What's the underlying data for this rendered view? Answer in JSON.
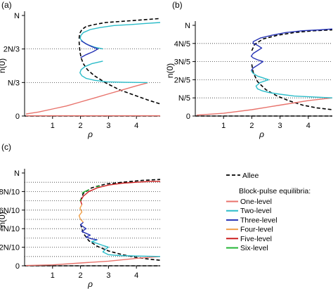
{
  "figure": {
    "ylabel": "n(0)",
    "xlabel": "ρ"
  },
  "legend": {
    "allee_label": "Allee",
    "header": "Block-pulse equilibria:",
    "items": [
      {
        "label": "One-level",
        "color": "#e8736c"
      },
      {
        "label": "Two-level",
        "color": "#2bbcc9"
      },
      {
        "label": "Three-level",
        "color": "#2633b5"
      },
      {
        "label": "Four-level",
        "color": "#f0a04a"
      },
      {
        "label": "Five-level",
        "color": "#cc1f1f"
      },
      {
        "label": "Six-level",
        "color": "#23b536"
      }
    ]
  },
  "chart_data": [
    {
      "panel": "(a)",
      "type": "line",
      "xlim": [
        0,
        4.85
      ],
      "ylim": [
        0,
        1
      ],
      "x_ticks": [
        1,
        2,
        3,
        4
      ],
      "x_tick_labels": [
        "1",
        "2",
        "3",
        "4"
      ],
      "y_ticks": [
        0,
        0.3333,
        0.6667,
        1
      ],
      "y_tick_labels": [
        "0",
        "N/3",
        "2N/3",
        "N"
      ],
      "dotted_hlines": [
        0.3333,
        0.6667
      ],
      "series": [
        {
          "name": "Allee",
          "style": "dashed",
          "color": "#000000",
          "x": [
            1.95,
            1.96,
            1.98,
            2.02,
            2.1,
            2.25,
            2.5,
            2.9,
            3.4,
            3.9,
            4.4,
            4.85
          ],
          "y": [
            0.74,
            0.7,
            0.64,
            0.58,
            0.52,
            0.46,
            0.4,
            0.33,
            0.26,
            0.21,
            0.16,
            0.12
          ]
        },
        {
          "name": "Allee",
          "style": "dashed",
          "color": "#000000",
          "x": [
            1.95,
            1.97,
            2.05,
            2.2,
            2.5,
            2.9,
            3.4,
            3.9,
            4.4,
            4.85
          ],
          "y": [
            0.77,
            0.82,
            0.86,
            0.89,
            0.91,
            0.93,
            0.94,
            0.95,
            0.96,
            0.97
          ]
        },
        {
          "name": "Allee",
          "style": "dashed",
          "color": "#000000",
          "x": [
            0,
            4.85
          ],
          "y": [
            0,
            0
          ]
        },
        {
          "name": "One-level",
          "color": "#e8736c",
          "x": [
            0.05,
            0.5,
            1.0,
            1.5,
            2.0,
            2.5,
            3.0,
            3.5,
            4.0,
            4.4
          ],
          "y": [
            0.02,
            0.04,
            0.07,
            0.1,
            0.14,
            0.18,
            0.22,
            0.26,
            0.3,
            0.33
          ]
        },
        {
          "name": "One-level",
          "color": "#e8736c",
          "x": [
            0.05,
            4.85
          ],
          "y": [
            0.003,
            0.003
          ]
        },
        {
          "name": "Two-level",
          "color": "#2bbcc9",
          "x": [
            4.4,
            3.6,
            2.95,
            2.5,
            2.2,
            2.05,
            1.98,
            2.02,
            2.15,
            2.4,
            2.8
          ],
          "y": [
            0.333,
            0.335,
            0.34,
            0.355,
            0.375,
            0.4,
            0.43,
            0.46,
            0.49,
            0.52,
            0.546
          ]
        },
        {
          "name": "Two-level",
          "color": "#2bbcc9",
          "x": [
            2.8,
            2.5,
            2.25,
            2.08,
            1.99,
            2.01,
            2.1,
            2.35,
            2.7,
            3.2,
            3.8,
            4.3,
            4.85
          ],
          "y": [
            0.667,
            0.685,
            0.71,
            0.74,
            0.77,
            0.8,
            0.83,
            0.86,
            0.88,
            0.9,
            0.91,
            0.92,
            0.93
          ]
        },
        {
          "name": "Three-level",
          "color": "#2633b5",
          "x": [
            2.0,
            2.2,
            2.45,
            2.62,
            2.4,
            2.18,
            2.02
          ],
          "y": [
            0.58,
            0.61,
            0.64,
            0.667,
            0.69,
            0.72,
            0.75
          ]
        }
      ]
    },
    {
      "panel": "(b)",
      "type": "line",
      "xlim": [
        0,
        4.85
      ],
      "ylim": [
        0,
        1
      ],
      "x_ticks": [
        1,
        2,
        3,
        4
      ],
      "x_tick_labels": [
        "1",
        "2",
        "3",
        "4"
      ],
      "y_ticks": [
        0,
        0.2,
        0.4,
        0.6,
        0.8,
        1
      ],
      "y_tick_labels": [
        "0",
        "N/5",
        "2N/5",
        "3N/5",
        "4N/5",
        "N"
      ],
      "dotted_hlines": [
        0.2,
        0.4,
        0.6,
        0.8
      ],
      "series": [
        {
          "name": "Allee",
          "style": "dashed",
          "color": "#000000",
          "x": [
            2.0,
            2.05,
            2.2,
            2.5,
            2.9,
            3.3,
            3.8,
            4.3,
            4.85
          ],
          "y": [
            0.57,
            0.48,
            0.38,
            0.29,
            0.22,
            0.17,
            0.12,
            0.09,
            0.07
          ]
        },
        {
          "name": "Allee",
          "style": "dashed",
          "color": "#000000",
          "x": [
            2.0,
            2.1,
            2.4,
            2.9,
            3.5,
            4.2,
            4.85
          ],
          "y": [
            0.72,
            0.79,
            0.85,
            0.89,
            0.92,
            0.94,
            0.95
          ]
        },
        {
          "name": "Allee",
          "style": "dashed",
          "color": "#000000",
          "x": [
            0,
            4.85
          ],
          "y": [
            0,
            0
          ]
        },
        {
          "name": "One-level",
          "color": "#e8736c",
          "x": [
            0.05,
            1.0,
            2.0,
            3.0,
            4.0,
            4.85
          ],
          "y": [
            0.01,
            0.03,
            0.07,
            0.12,
            0.17,
            0.2
          ]
        },
        {
          "name": "Two-level",
          "color": "#2bbcc9",
          "x": [
            4.85,
            4.2,
            3.5,
            3.0,
            2.6,
            2.35,
            2.2,
            2.15,
            2.3,
            2.6
          ],
          "y": [
            0.2,
            0.21,
            0.22,
            0.24,
            0.26,
            0.28,
            0.3,
            0.33,
            0.37,
            0.4
          ]
        },
        {
          "name": "Two-level",
          "color": "#2bbcc9",
          "x": [
            2.6,
            2.4,
            2.2,
            2.05,
            1.98
          ],
          "y": [
            0.4,
            0.42,
            0.44,
            0.47,
            0.5
          ]
        },
        {
          "name": "Three-level",
          "color": "#2633b5",
          "x": [
            1.98,
            2.05,
            2.2,
            2.4,
            2.2,
            2.05,
            1.98,
            2.05,
            2.2,
            2.35,
            2.2,
            2.05,
            2.05,
            2.3,
            2.7,
            3.2,
            3.8,
            4.4,
            4.85
          ],
          "y": [
            0.5,
            0.53,
            0.56,
            0.6,
            0.62,
            0.64,
            0.66,
            0.69,
            0.72,
            0.75,
            0.78,
            0.8,
            0.82,
            0.86,
            0.89,
            0.92,
            0.94,
            0.95,
            0.96
          ]
        }
      ]
    },
    {
      "panel": "(c)",
      "type": "line",
      "xlim": [
        0,
        4.85
      ],
      "ylim": [
        0,
        1
      ],
      "x_ticks": [
        1,
        2,
        3,
        4
      ],
      "x_tick_labels": [
        "1",
        "2",
        "3",
        "4"
      ],
      "y_ticks": [
        0,
        0.2,
        0.4,
        0.6,
        0.8,
        1
      ],
      "y_tick_labels": [
        "0",
        "2N/10",
        "4N/10",
        "6N/10",
        "8N/10",
        "N"
      ],
      "dotted_hlines": [
        0.1,
        0.2,
        0.3,
        0.4,
        0.5,
        0.6,
        0.7,
        0.8,
        0.9
      ],
      "series": [
        {
          "name": "Allee",
          "style": "dashed",
          "color": "#000000",
          "x": [
            2.0,
            2.1,
            2.3,
            2.6,
            3.0,
            3.5,
            4.0,
            4.5,
            4.85
          ],
          "y": [
            0.45,
            0.35,
            0.27,
            0.21,
            0.16,
            0.12,
            0.09,
            0.07,
            0.06
          ]
        },
        {
          "name": "Allee",
          "style": "dashed",
          "color": "#000000",
          "x": [
            2.0,
            2.1,
            2.4,
            2.9,
            3.5,
            4.2,
            4.85
          ],
          "y": [
            0.7,
            0.78,
            0.84,
            0.88,
            0.9,
            0.92,
            0.93
          ]
        },
        {
          "name": "Allee",
          "style": "dashed",
          "color": "#000000",
          "x": [
            0,
            4.85
          ],
          "y": [
            0,
            0
          ]
        },
        {
          "name": "One-level",
          "color": "#e8736c",
          "x": [
            0.05,
            1.0,
            2.0,
            3.0,
            4.0,
            4.85
          ],
          "y": [
            0.003,
            0.01,
            0.03,
            0.05,
            0.08,
            0.1
          ]
        },
        {
          "name": "Two-level",
          "color": "#2bbcc9",
          "x": [
            4.85,
            4.0,
            3.4,
            3.0,
            2.8,
            2.9,
            3.0
          ],
          "y": [
            0.1,
            0.105,
            0.11,
            0.12,
            0.15,
            0.18,
            0.2
          ]
        },
        {
          "name": "Two-level",
          "color": "#2bbcc9",
          "x": [
            3.0,
            2.8,
            2.6,
            2.4,
            2.6
          ],
          "y": [
            0.2,
            0.22,
            0.24,
            0.26,
            0.28
          ]
        },
        {
          "name": "Three-level",
          "color": "#2633b5",
          "x": [
            2.6,
            2.4,
            2.2,
            2.35,
            2.2,
            2.05,
            2.2,
            2.1,
            2.0,
            2.1
          ],
          "y": [
            0.28,
            0.29,
            0.31,
            0.33,
            0.35,
            0.37,
            0.4,
            0.42,
            0.44,
            0.47
          ]
        },
        {
          "name": "Four-level",
          "color": "#f0a04a",
          "x": [
            2.1,
            2.0,
            1.95,
            2.05,
            1.98,
            2.05
          ],
          "y": [
            0.47,
            0.5,
            0.54,
            0.58,
            0.62,
            0.66
          ]
        },
        {
          "name": "Five-level",
          "color": "#cc1f1f",
          "x": [
            2.05,
            2.0,
            2.1,
            2.3,
            2.6,
            3.0,
            3.5,
            4.0,
            4.5,
            4.85
          ],
          "y": [
            0.66,
            0.7,
            0.75,
            0.8,
            0.84,
            0.87,
            0.89,
            0.9,
            0.91,
            0.91
          ]
        },
        {
          "name": "Six-level",
          "color": "#23b536",
          "x": [
            2.05,
            2.15,
            2.3
          ],
          "y": [
            0.78,
            0.8,
            0.82
          ]
        },
        {
          "name": "Six-level",
          "color": "#23b536",
          "x": [
            2.55,
            2.7
          ],
          "y": [
            0.85,
            0.86
          ]
        },
        {
          "name": "Six-level",
          "color": "#23b536",
          "x": [
            1.98,
            2.02
          ],
          "y": [
            0.7,
            0.72
          ]
        }
      ]
    }
  ]
}
